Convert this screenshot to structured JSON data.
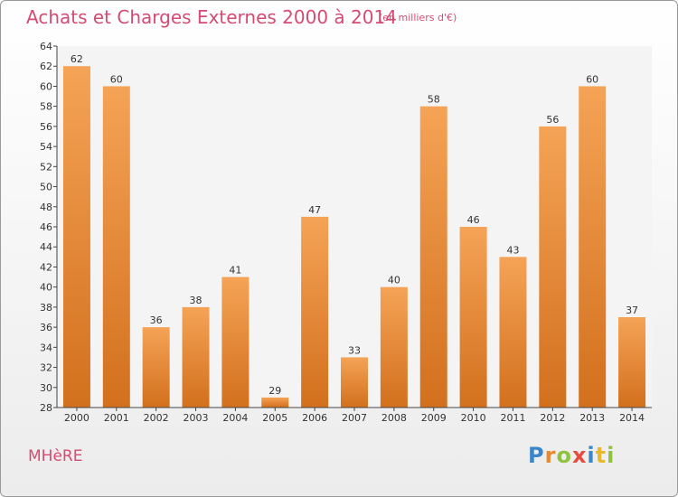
{
  "chart_data": {
    "type": "bar",
    "title": "Achats et Charges Externes 2000 à 2014",
    "unit": "(en milliers d'€)",
    "categories": [
      "2000",
      "2001",
      "2002",
      "2003",
      "2004",
      "2005",
      "2006",
      "2007",
      "2008",
      "2009",
      "2010",
      "2011",
      "2012",
      "2013",
      "2014"
    ],
    "values": [
      62,
      60,
      36,
      38,
      41,
      29,
      47,
      33,
      40,
      58,
      46,
      43,
      56,
      60,
      37
    ],
    "ylim": [
      28,
      64
    ],
    "ytick_step": 2,
    "grid": false,
    "bar_color_top": "#f5a356",
    "bar_color_bottom": "#d2701d"
  },
  "footer": {
    "city": "MHèRE",
    "brand_letters": [
      {
        "ch": "P",
        "color": "#3a86c8"
      },
      {
        "ch": "r",
        "color": "#e8892c"
      },
      {
        "ch": "o",
        "color": "#8fc23e"
      },
      {
        "ch": "x",
        "color": "#e84c3d"
      },
      {
        "ch": "i",
        "color": "#3a86c8"
      },
      {
        "ch": "t",
        "color": "#e8b92c"
      },
      {
        "ch": "i",
        "color": "#8fc23e"
      }
    ]
  },
  "colors": {
    "accent": "#d64b73"
  }
}
